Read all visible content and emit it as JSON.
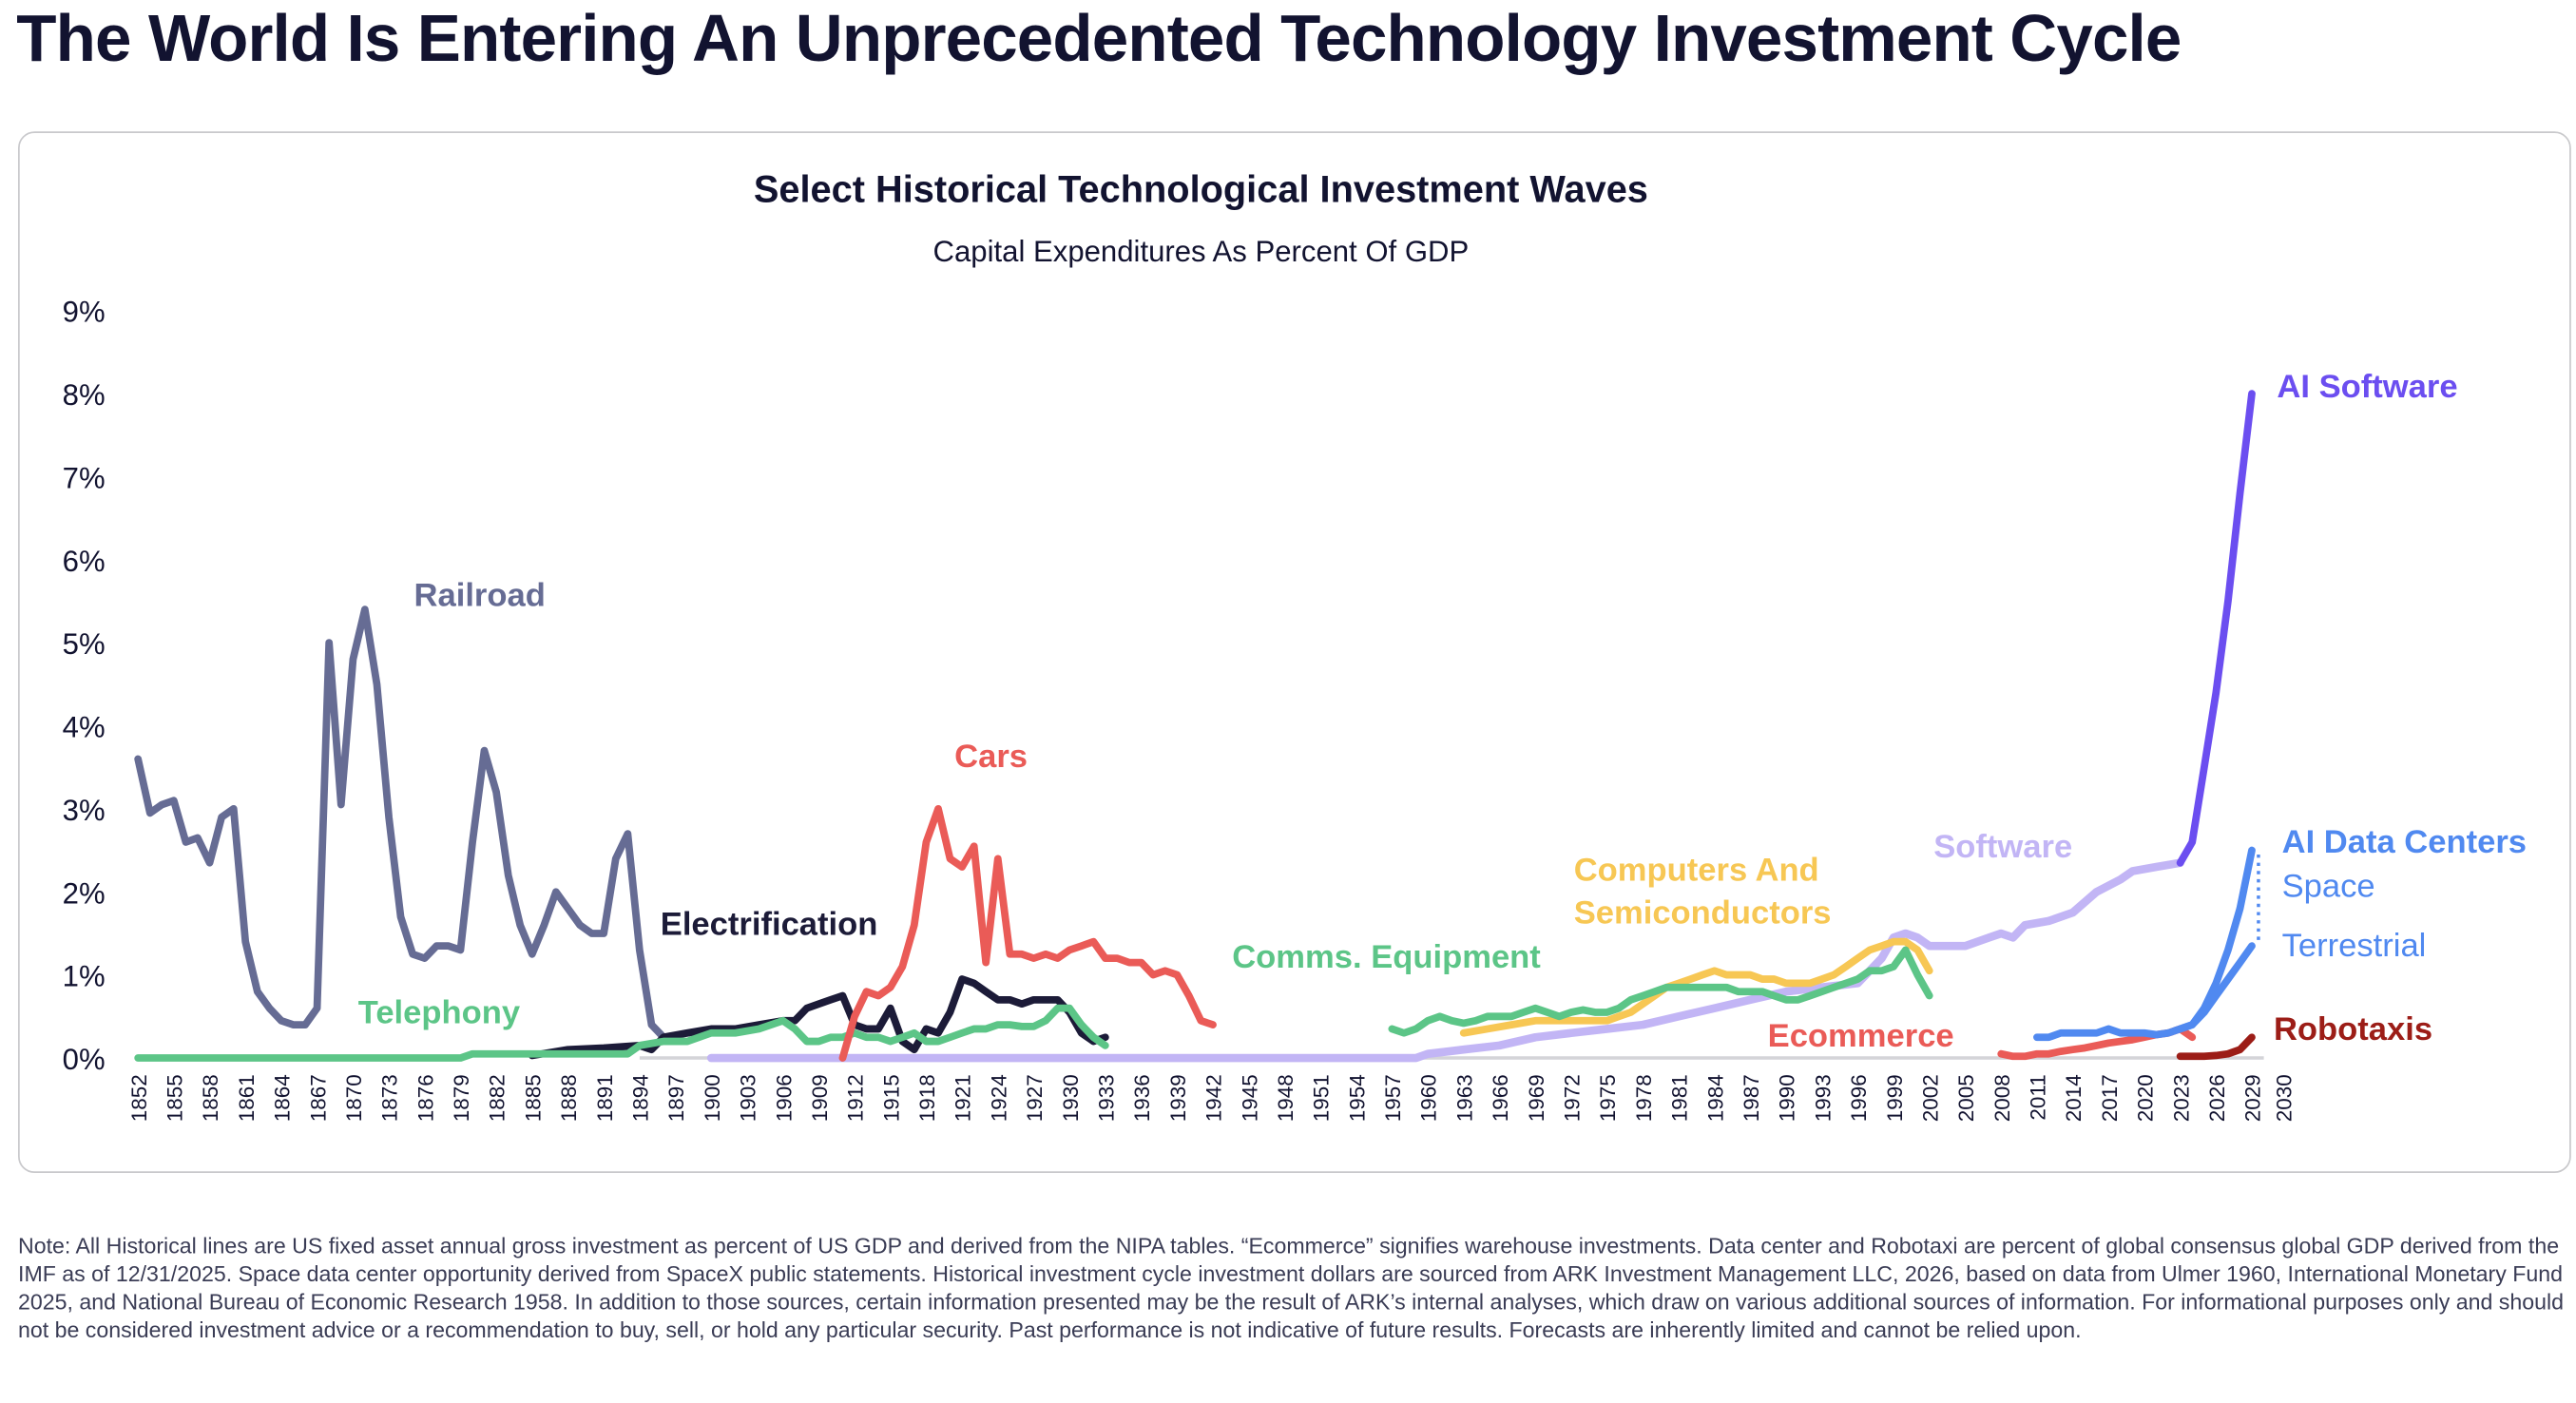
{
  "page_title": "The World Is Entering An Unprecedented Technology Investment Cycle",
  "note": "Note: All Historical lines are US fixed asset annual gross investment as percent of US GDP and derived from the NIPA tables. “Ecommerce” signifies warehouse investments. Data center and Robotaxi are percent of global consensus global GDP derived from the IMF as of 12/31/2025. Space data center opportunity derived from SpaceX public statements. Historical investment cycle investment dollars are sourced from ARK Investment Management LLC, 2026, based on data from Ulmer 1960, International Monetary Fund 2025, and National Bureau of Economic Research 1958. In addition to those sources, certain information presented may be the result of ARK’s internal analyses, which draw on various additional sources of information. For informational purposes only and should not be considered investment advice or a recommendation to buy, sell, or hold any particular security. Past performance is not indicative of future results. Forecasts are inherently limited and cannot be relied upon.",
  "chart_data": {
    "type": "line",
    "title": "Select Historical Technological Investment Waves",
    "subtitle": "Capital Expenditures As Percent Of GDP",
    "xlim": [
      1852,
      2030
    ],
    "ylim": [
      0,
      9
    ],
    "yticks": [
      "0%",
      "1%",
      "2%",
      "3%",
      "4%",
      "5%",
      "6%",
      "7%",
      "8%",
      "9%"
    ],
    "xticks": [
      "1852",
      "1855",
      "1858",
      "1861",
      "1864",
      "1867",
      "1870",
      "1873",
      "1876",
      "1879",
      "1882",
      "1885",
      "1888",
      "1891",
      "1894",
      "1897",
      "1900",
      "1903",
      "1906",
      "1909",
      "1912",
      "1915",
      "1918",
      "1921",
      "1924",
      "1927",
      "1930",
      "1933",
      "1936",
      "1939",
      "1942",
      "1945",
      "1948",
      "1951",
      "1954",
      "1957",
      "1960",
      "1963",
      "1966",
      "1969",
      "1972",
      "1975",
      "1978",
      "1981",
      "1984",
      "1987",
      "1990",
      "1993",
      "1996",
      "1999",
      "2002",
      "2005",
      "2008",
      "2011",
      "2014",
      "2017",
      "2020",
      "2023",
      "2026",
      "2029",
      "2030"
    ],
    "labels": {
      "railroad": "Railroad",
      "telephony": "Telephony",
      "electrification": "Electrification",
      "cars": "Cars",
      "comms": "Comms. Equipment",
      "computers_1": "Computers And",
      "computers_2": "Semiconductors",
      "software": "Software",
      "ai_software": "AI Software",
      "ecommerce": "Ecommerce",
      "ai_dc": "AI Data Centers",
      "space": "Space",
      "terrestrial": "Terrestrial",
      "robotaxis": "Robotaxis"
    },
    "series": [
      {
        "name": "Software",
        "key": "software",
        "color": "#c2b5f5",
        "x": [
          1900,
          1959,
          1960,
          1963,
          1966,
          1969,
          1972,
          1975,
          1978,
          1981,
          1984,
          1987,
          1990,
          1993,
          1996,
          1998,
          1999,
          2000,
          2001,
          2002,
          2005,
          2007,
          2008,
          2009,
          2010,
          2012,
          2014,
          2016,
          2018,
          2019,
          2021,
          2023
        ],
        "y": [
          0,
          0,
          0.05,
          0.1,
          0.15,
          0.25,
          0.3,
          0.35,
          0.4,
          0.5,
          0.6,
          0.7,
          0.8,
          0.85,
          0.9,
          1.2,
          1.45,
          1.5,
          1.45,
          1.35,
          1.35,
          1.45,
          1.5,
          1.45,
          1.6,
          1.65,
          1.75,
          2.0,
          2.15,
          2.25,
          2.3,
          2.35
        ]
      },
      {
        "name": "Railroad",
        "key": "railroad",
        "color": "#666c94",
        "x": [
          1852,
          1853,
          1854,
          1855,
          1856,
          1857,
          1858,
          1859,
          1860,
          1861,
          1862,
          1863,
          1864,
          1865,
          1866,
          1867,
          1868,
          1869,
          1870,
          1871,
          1872,
          1873,
          1874,
          1875,
          1876,
          1877,
          1878,
          1879,
          1880,
          1881,
          1882,
          1883,
          1884,
          1885,
          1886,
          1887,
          1888,
          1889,
          1890,
          1891,
          1892,
          1893,
          1894,
          1895,
          1896,
          1897
        ],
        "y": [
          3.6,
          2.95,
          3.05,
          3.1,
          2.6,
          2.65,
          2.35,
          2.9,
          3.0,
          1.4,
          0.8,
          0.6,
          0.45,
          0.4,
          0.4,
          0.6,
          5.0,
          3.05,
          4.8,
          5.4,
          4.5,
          2.9,
          1.7,
          1.25,
          1.2,
          1.35,
          1.35,
          1.3,
          2.6,
          3.7,
          3.2,
          2.2,
          1.6,
          1.25,
          1.6,
          2.0,
          1.8,
          1.6,
          1.5,
          1.5,
          2.4,
          2.7,
          1.3,
          0.4,
          0.25,
          0.2
        ]
      },
      {
        "name": "Electrification",
        "key": "electrification",
        "color": "#1c1b38",
        "x": [
          1885,
          1888,
          1891,
          1894,
          1895,
          1896,
          1898,
          1900,
          1902,
          1904,
          1906,
          1907,
          1908,
          1909,
          1910,
          1911,
          1912,
          1913,
          1914,
          1915,
          1916,
          1917,
          1918,
          1919,
          1920,
          1921,
          1922,
          1923,
          1924,
          1925,
          1926,
          1927,
          1928,
          1929,
          1930,
          1931,
          1932,
          1933
        ],
        "y": [
          0.03,
          0.1,
          0.12,
          0.15,
          0.1,
          0.25,
          0.3,
          0.35,
          0.35,
          0.4,
          0.45,
          0.45,
          0.6,
          0.65,
          0.7,
          0.75,
          0.4,
          0.35,
          0.35,
          0.6,
          0.2,
          0.1,
          0.35,
          0.3,
          0.55,
          0.95,
          0.9,
          0.8,
          0.7,
          0.7,
          0.65,
          0.7,
          0.7,
          0.7,
          0.55,
          0.3,
          0.2,
          0.25
        ]
      },
      {
        "name": "Telephony",
        "key": "telephony",
        "color": "#5cc587",
        "x": [
          1852,
          1879,
          1880,
          1893,
          1894,
          1896,
          1898,
          1900,
          1902,
          1904,
          1906,
          1907,
          1908,
          1909,
          1910,
          1911,
          1912,
          1913,
          1914,
          1915,
          1916,
          1917,
          1918,
          1919,
          1920,
          1921,
          1922,
          1923,
          1924,
          1925,
          1926,
          1927,
          1928,
          1929,
          1930,
          1931,
          1932,
          1933
        ],
        "y": [
          0,
          0,
          0.05,
          0.05,
          0.15,
          0.2,
          0.2,
          0.3,
          0.3,
          0.35,
          0.45,
          0.35,
          0.2,
          0.2,
          0.25,
          0.25,
          0.3,
          0.25,
          0.25,
          0.2,
          0.25,
          0.3,
          0.2,
          0.2,
          0.25,
          0.3,
          0.35,
          0.35,
          0.4,
          0.4,
          0.38,
          0.38,
          0.45,
          0.6,
          0.6,
          0.4,
          0.25,
          0.15
        ]
      },
      {
        "name": "Cars",
        "key": "cars",
        "color": "#ea5b57",
        "x": [
          1911,
          1912,
          1913,
          1914,
          1915,
          1916,
          1917,
          1918,
          1919,
          1920,
          1921,
          1922,
          1923,
          1924,
          1925,
          1926,
          1927,
          1928,
          1929,
          1930,
          1931,
          1932,
          1933,
          1934,
          1935,
          1936,
          1937,
          1938,
          1939,
          1940,
          1941,
          1942
        ],
        "y": [
          0,
          0.5,
          0.8,
          0.75,
          0.85,
          1.1,
          1.6,
          2.6,
          3.0,
          2.4,
          2.3,
          2.55,
          1.15,
          2.4,
          1.25,
          1.25,
          1.2,
          1.25,
          1.2,
          1.3,
          1.35,
          1.4,
          1.2,
          1.2,
          1.15,
          1.15,
          1.0,
          1.05,
          1.0,
          0.75,
          0.45,
          0.4
        ]
      },
      {
        "name": "Computers And Semiconductors",
        "key": "computers",
        "color": "#f7c754",
        "x": [
          1963,
          1965,
          1967,
          1969,
          1971,
          1973,
          1975,
          1976,
          1977,
          1978,
          1979,
          1980,
          1981,
          1982,
          1983,
          1984,
          1985,
          1986,
          1987,
          1988,
          1989,
          1990,
          1991,
          1992,
          1993,
          1994,
          1995,
          1996,
          1997,
          1998,
          1999,
          2000,
          2001,
          2002
        ],
        "y": [
          0.3,
          0.35,
          0.4,
          0.45,
          0.45,
          0.45,
          0.45,
          0.5,
          0.55,
          0.65,
          0.75,
          0.85,
          0.9,
          0.95,
          1.0,
          1.05,
          1.0,
          1.0,
          1.0,
          0.95,
          0.95,
          0.9,
          0.9,
          0.9,
          0.95,
          1.0,
          1.1,
          1.2,
          1.3,
          1.35,
          1.4,
          1.4,
          1.3,
          1.05
        ]
      },
      {
        "name": "Comms. Equipment",
        "key": "comms",
        "color": "#5cc587",
        "x": [
          1957,
          1958,
          1959,
          1960,
          1961,
          1962,
          1963,
          1964,
          1965,
          1966,
          1967,
          1968,
          1969,
          1970,
          1971,
          1972,
          1973,
          1974,
          1975,
          1976,
          1977,
          1978,
          1979,
          1980,
          1981,
          1982,
          1983,
          1984,
          1985,
          1986,
          1987,
          1988,
          1989,
          1990,
          1991,
          1992,
          1993,
          1994,
          1995,
          1996,
          1997,
          1998,
          1999,
          2000,
          2001,
          2002
        ],
        "y": [
          0.35,
          0.3,
          0.35,
          0.45,
          0.5,
          0.45,
          0.42,
          0.45,
          0.5,
          0.5,
          0.5,
          0.55,
          0.6,
          0.55,
          0.5,
          0.55,
          0.58,
          0.55,
          0.55,
          0.6,
          0.7,
          0.75,
          0.8,
          0.85,
          0.85,
          0.85,
          0.85,
          0.85,
          0.85,
          0.8,
          0.8,
          0.8,
          0.75,
          0.7,
          0.7,
          0.75,
          0.8,
          0.85,
          0.9,
          0.95,
          1.05,
          1.05,
          1.1,
          1.3,
          1.0,
          0.75
        ]
      },
      {
        "name": "Ecommerce",
        "key": "ecommerce",
        "color": "#ea5b57",
        "x": [
          2008,
          2009,
          2010,
          2011,
          2012,
          2013,
          2014,
          2015,
          2016,
          2017,
          2018,
          2019,
          2020,
          2021,
          2022,
          2023,
          2024
        ],
        "y": [
          0.05,
          0.02,
          0.02,
          0.05,
          0.05,
          0.08,
          0.1,
          0.12,
          0.15,
          0.18,
          0.2,
          0.22,
          0.25,
          0.28,
          0.3,
          0.35,
          0.25
        ]
      },
      {
        "name": "AI Data Centers Space",
        "key": "space",
        "color": "#5089f0",
        "x": [
          2011,
          2012,
          2013,
          2014,
          2015,
          2016,
          2017,
          2018,
          2019,
          2020,
          2021,
          2022,
          2023,
          2024,
          2025,
          2026,
          2027,
          2028,
          2029
        ],
        "y": [
          0.25,
          0.25,
          0.3,
          0.3,
          0.3,
          0.3,
          0.35,
          0.3,
          0.3,
          0.3,
          0.28,
          0.3,
          0.35,
          0.4,
          0.6,
          0.9,
          1.3,
          1.8,
          2.5
        ]
      },
      {
        "name": "AI Data Centers Terrestrial",
        "key": "terrestrial",
        "color": "#5089f0",
        "x": [
          2023,
          2024,
          2025,
          2026,
          2027,
          2028,
          2029
        ],
        "y": [
          0.35,
          0.4,
          0.55,
          0.75,
          0.95,
          1.15,
          1.35
        ]
      },
      {
        "name": "Robotaxis",
        "key": "robotaxis",
        "color": "#9c1d17",
        "x": [
          2023,
          2025,
          2026,
          2027,
          2028,
          2029
        ],
        "y": [
          0.02,
          0.02,
          0.03,
          0.05,
          0.1,
          0.25
        ]
      },
      {
        "name": "AI Software",
        "key": "ai_software",
        "color": "#6b4ef0",
        "x": [
          2023,
          2024,
          2025,
          2026,
          2027,
          2028,
          2029
        ],
        "y": [
          2.35,
          2.6,
          3.5,
          4.4,
          5.5,
          6.8,
          8.0
        ]
      }
    ]
  }
}
